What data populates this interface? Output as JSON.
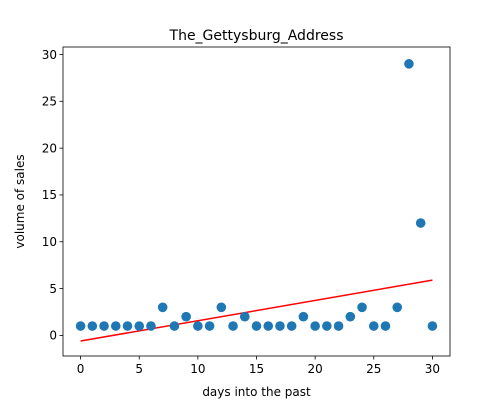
{
  "chart_data": {
    "type": "scatter",
    "title": "The_Gettysburg_Address",
    "xlabel": "days into the past",
    "ylabel": "volume of sales",
    "xlim": [
      -1.5,
      31.5
    ],
    "ylim": [
      -2.2,
      30.8
    ],
    "xticks": [
      0,
      5,
      10,
      15,
      20,
      25,
      30
    ],
    "yticks": [
      0,
      5,
      10,
      15,
      20,
      25,
      30
    ],
    "grid": false,
    "legend": "none",
    "series": [
      {
        "kind": "scatter",
        "color": "#1f77b4",
        "x": [
          0,
          1,
          2,
          3,
          4,
          5,
          6,
          7,
          8,
          9,
          10,
          11,
          12,
          13,
          14,
          15,
          16,
          17,
          18,
          19,
          20,
          21,
          22,
          23,
          24,
          25,
          26,
          27,
          28,
          29,
          30
        ],
        "y": [
          1,
          1,
          1,
          1,
          1,
          1,
          1,
          3,
          1,
          2,
          1,
          1,
          3,
          1,
          2,
          1,
          1,
          1,
          1,
          2,
          1,
          1,
          1,
          2,
          3,
          1,
          1,
          3,
          29,
          12,
          1
        ]
      },
      {
        "kind": "line",
        "color": "#ff0000",
        "x": [
          0,
          30
        ],
        "y": [
          -0.6,
          5.9
        ]
      }
    ]
  }
}
